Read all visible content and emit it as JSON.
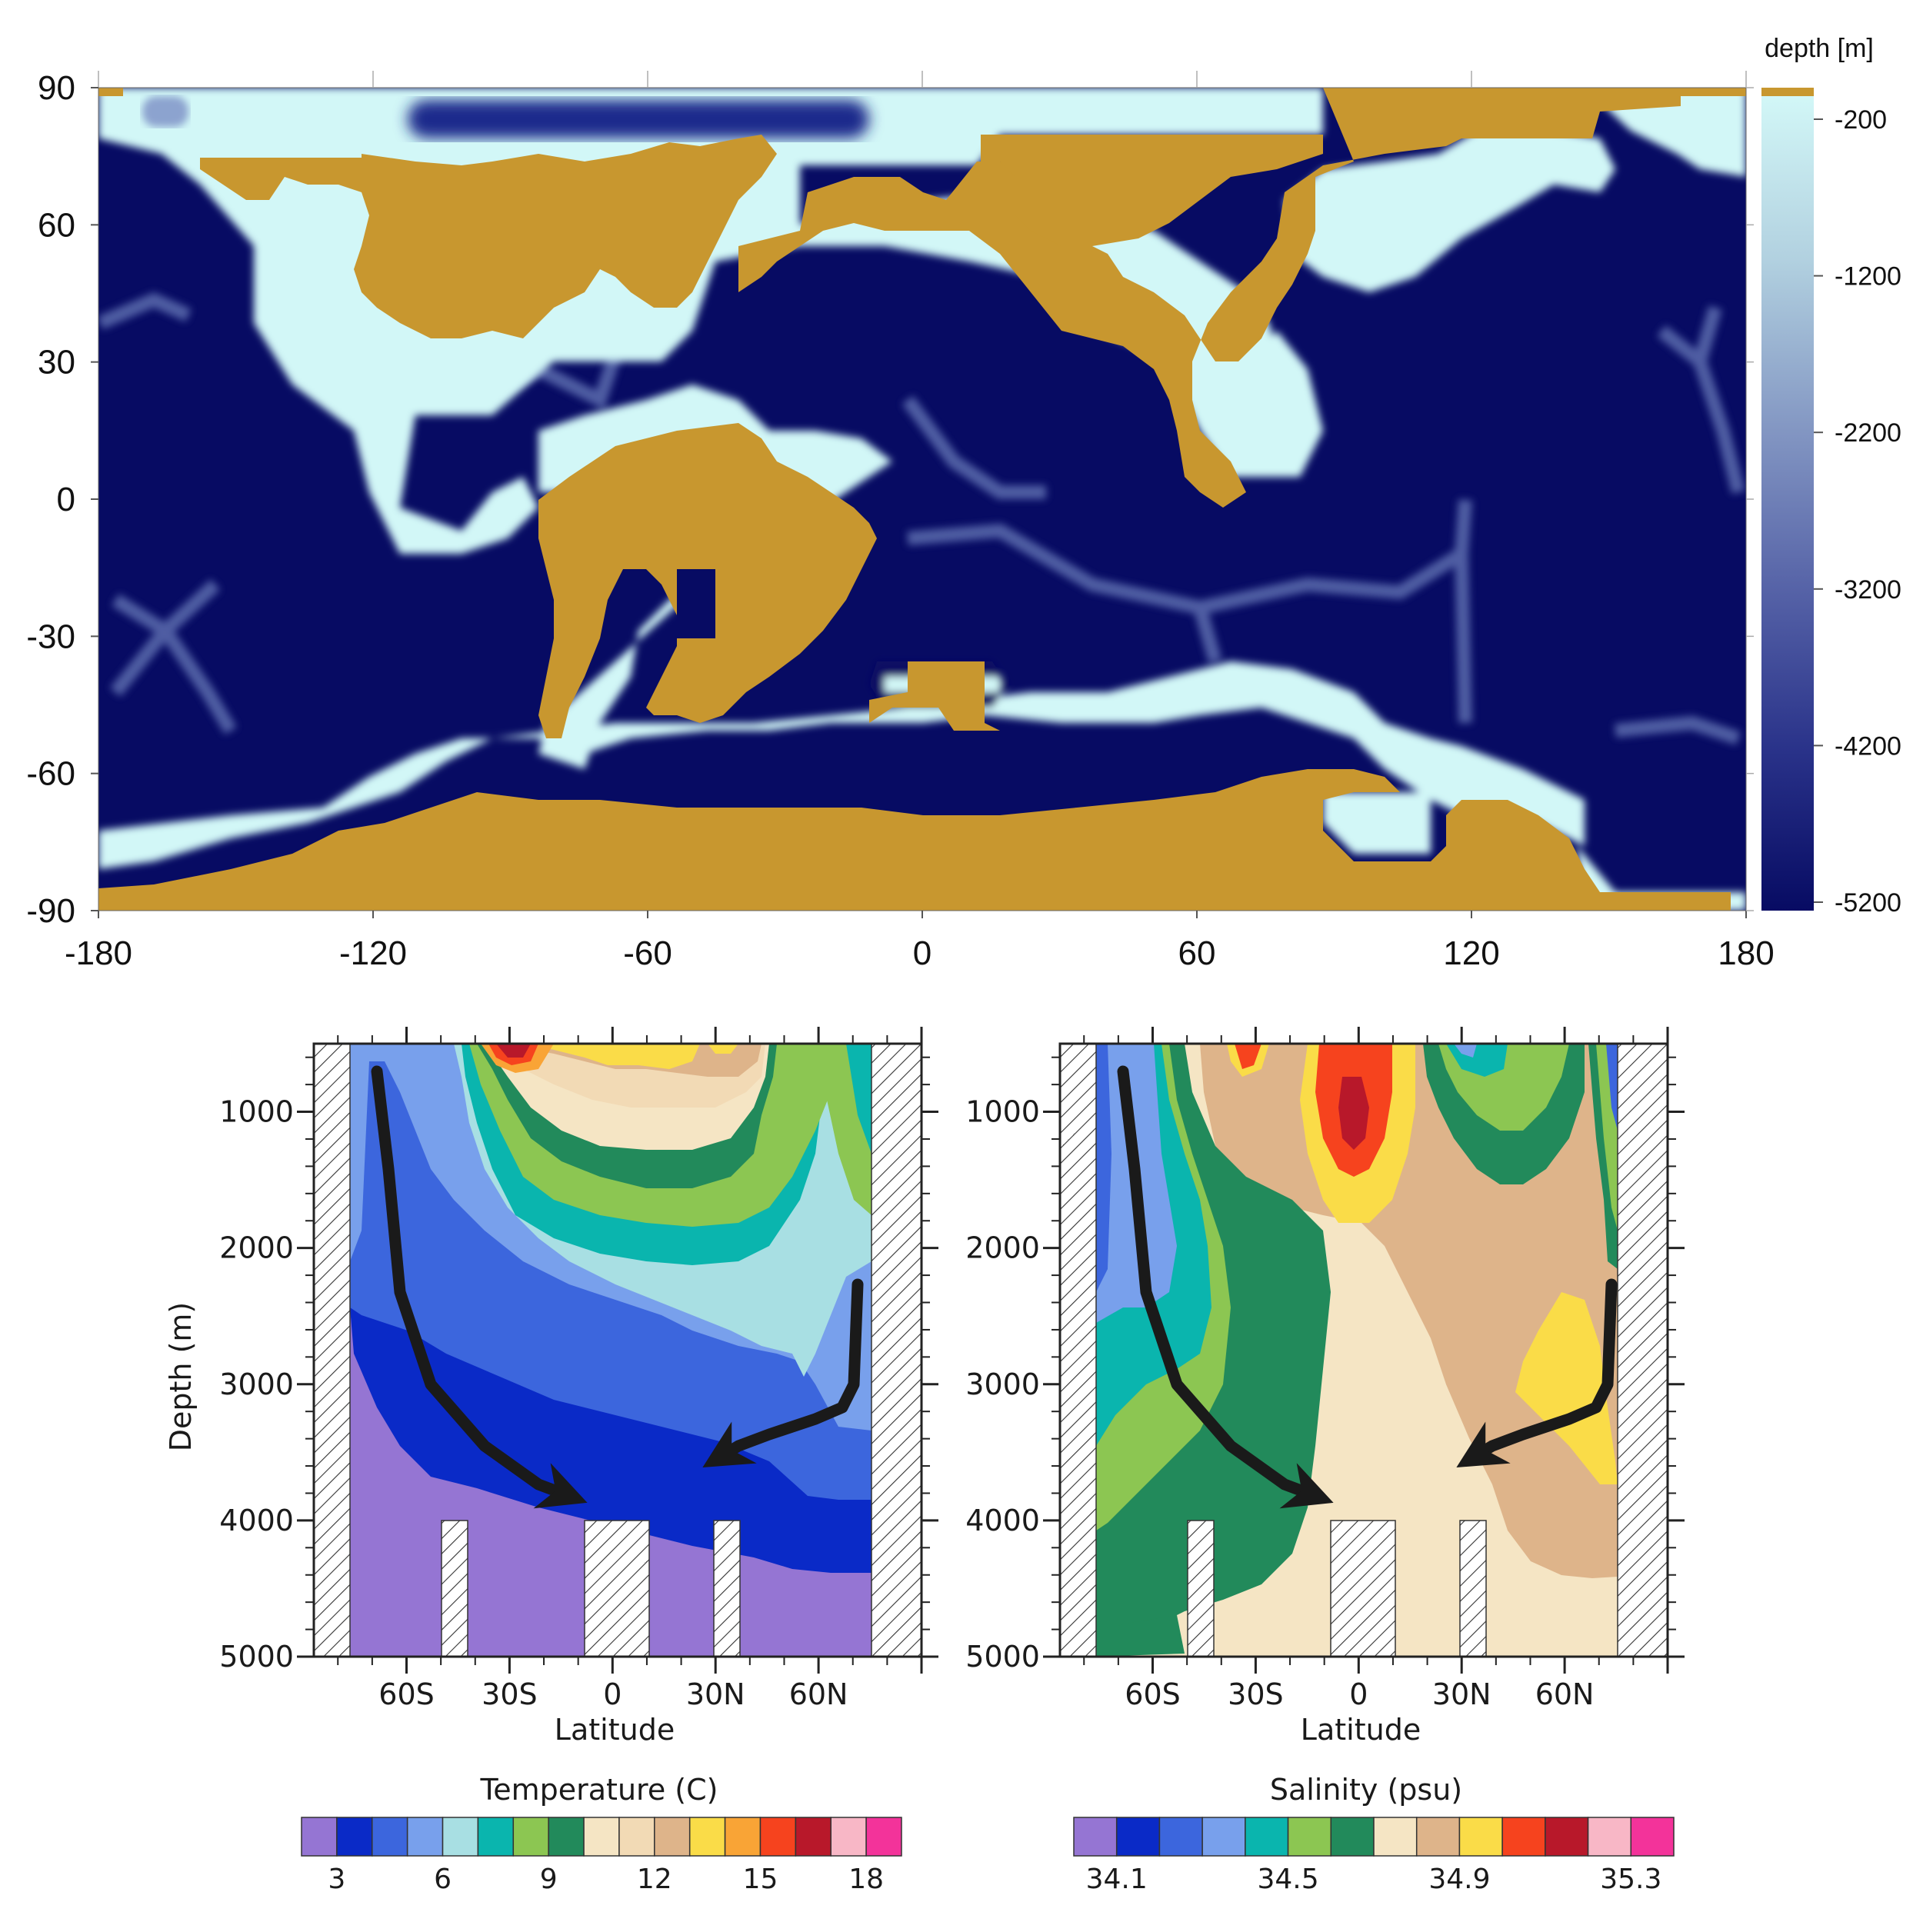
{
  "chart_data": [
    {
      "type": "heatmap",
      "title": "",
      "xlabel": "",
      "ylabel": "",
      "x_ticks": [
        -180,
        -120,
        -60,
        0,
        60,
        120,
        180
      ],
      "y_ticks": [
        90,
        60,
        30,
        0,
        -30,
        -60,
        -90
      ],
      "xlim": [
        -180,
        180
      ],
      "ylim": [
        -90,
        90
      ],
      "colorbar": {
        "title": "depth [m]",
        "ticks": [
          -200,
          -1200,
          -2200,
          -3200,
          -4200,
          -5200
        ],
        "range": [
          -5200,
          -200
        ]
      },
      "colors": {
        "land": "#C8972F",
        "shallow": "#D2F7F7",
        "deep": "#070B63",
        "mid": "#5B6CAE"
      }
    },
    {
      "type": "heatmap",
      "title": "",
      "xlabel": "Latitude",
      "ylabel": "Depth (m)",
      "x_ticks": [
        "60S",
        "30S",
        "0",
        "30N",
        "60N"
      ],
      "x_tick_values": [
        -60,
        -30,
        0,
        30,
        60
      ],
      "y_ticks": [
        1000,
        2000,
        3000,
        4000,
        5000
      ],
      "xlim": [
        -87,
        90
      ],
      "ylim": [
        5000,
        500
      ],
      "legend": {
        "title": "Temperature (C)",
        "tick_labels": [
          "3",
          "6",
          "9",
          "12",
          "15",
          "18"
        ],
        "colors": [
          "#9575D3",
          "#0A2AC7",
          "#3C66DD",
          "#78A0EC",
          "#A8DFE3",
          "#0AB5AE",
          "#8CC652",
          "#228A5B",
          "#F5E5C4",
          "#F2DAB5",
          "#DEB48A",
          "#FADC48",
          "#F9A436",
          "#F6431E",
          "#B8182A",
          "#F8B7C6",
          "#F3339A"
        ]
      }
    },
    {
      "type": "heatmap",
      "title": "",
      "xlabel": "Latitude",
      "ylabel": "",
      "x_ticks": [
        "60S",
        "30S",
        "0",
        "30N",
        "60N"
      ],
      "x_tick_values": [
        -60,
        -30,
        0,
        30,
        60
      ],
      "y_ticks": [
        1000,
        2000,
        3000,
        4000,
        5000
      ],
      "xlim": [
        -87,
        90
      ],
      "ylim": [
        5000,
        500
      ],
      "legend": {
        "title": "Salinity (psu)",
        "tick_labels": [
          "34.1",
          "34.5",
          "34.9",
          "35.3"
        ],
        "colors": [
          "#9575D3",
          "#0A2AC7",
          "#3C66DD",
          "#78A0EC",
          "#0AB5AE",
          "#8CC652",
          "#228A5B",
          "#F5E5C4",
          "#DEB48A",
          "#FADC48",
          "#F6431E",
          "#B8182A",
          "#F8B7C6",
          "#F3339A"
        ]
      }
    }
  ]
}
